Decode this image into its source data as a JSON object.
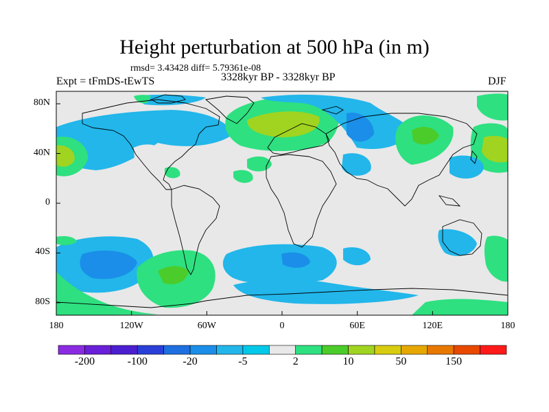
{
  "title": "Height perturbation at 500 hPa (in m)",
  "stats": "rmsd= 3.43428 diff= 5.79361e-08",
  "experiment": "Expt = tFmDS-tEwTS",
  "period": "3328kyr BP - 3328kyr BP",
  "season": "DJF",
  "lat_ticks": [
    "80N",
    "40N",
    "0",
    "40S",
    "80S"
  ],
  "lon_ticks": [
    "180",
    "120W",
    "60W",
    "0",
    "60E",
    "120E",
    "180"
  ],
  "colorbar": {
    "colors": [
      "#8a2be2",
      "#6a1fd8",
      "#4b1fd0",
      "#2a3fd8",
      "#1e6fe0",
      "#1a8ee8",
      "#22b6ea",
      "#00c8e8",
      "#e8e8e8",
      "#2ee080",
      "#4ccc2a",
      "#a0d420",
      "#d8cc10",
      "#e6a800",
      "#e87800",
      "#e84800",
      "#ff1a1a"
    ],
    "labels": [
      "-200",
      "-100",
      "-20",
      "-5",
      "2",
      "10",
      "50",
      "150"
    ]
  },
  "colors": {
    "background": "#e8e8e8"
  }
}
